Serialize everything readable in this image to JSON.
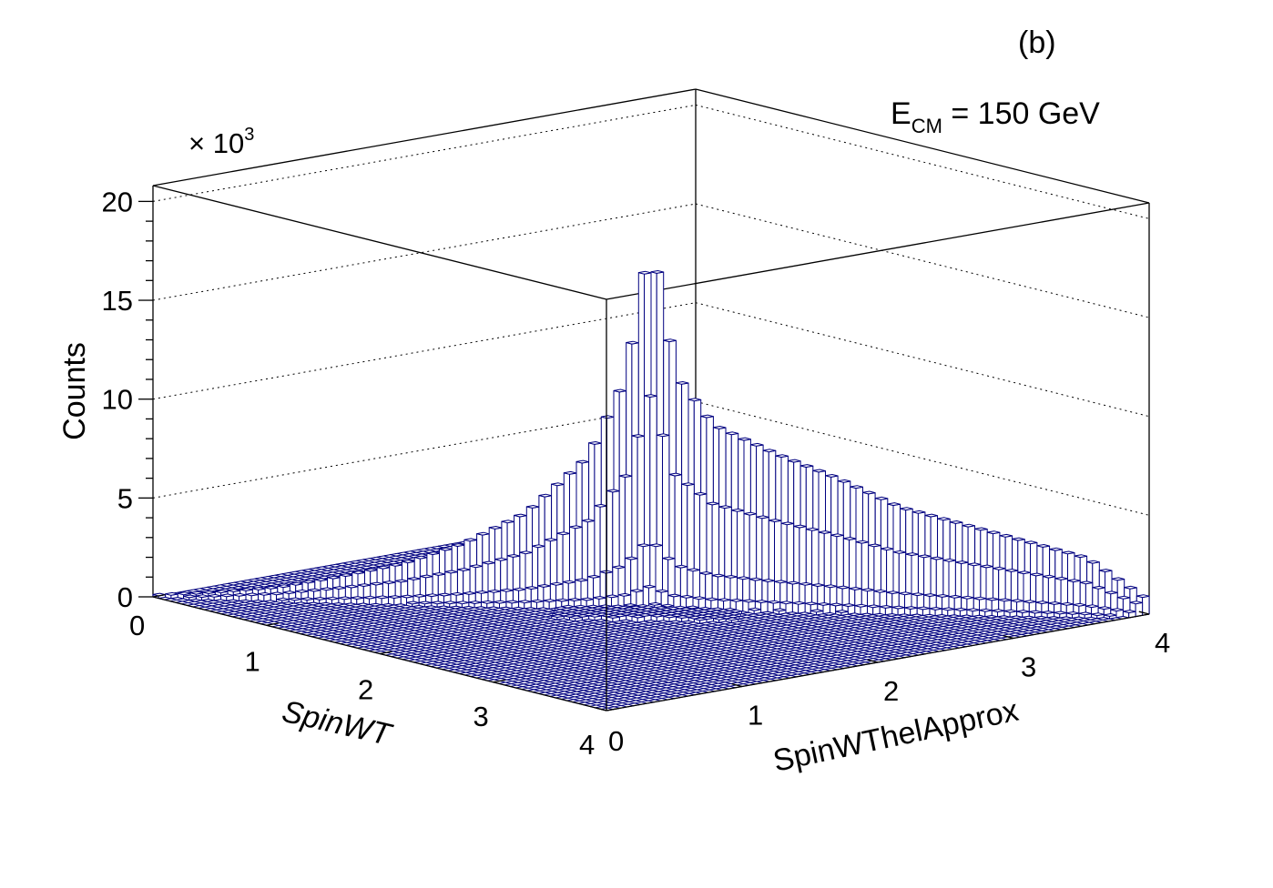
{
  "panel_label": "(b)",
  "annotation": {
    "prefix": "E",
    "subscript": "CM",
    "suffix": " = 150 GeV"
  },
  "colors": {
    "bar_outline": "#000080",
    "bar_fill": "#ffffff",
    "frame": "#000000"
  },
  "chart_data": {
    "type": "lego",
    "xlabel": "SpinWT",
    "ylabel": "SpinWThelApprox",
    "zlabel": "Counts",
    "z_multiplier": "× 10",
    "z_multiplier_exponent": "3",
    "xlim": [
      0,
      4
    ],
    "ylim": [
      0,
      4
    ],
    "zlim": [
      0,
      20.8
    ],
    "x_ticks": [
      "0",
      "1",
      "2",
      "3",
      "4"
    ],
    "y_ticks": [
      "0",
      "1",
      "2",
      "3",
      "4"
    ],
    "z_ticks": [
      "0",
      "5",
      "10",
      "15",
      "20"
    ],
    "grid": true,
    "bins_x": 80,
    "bins_y": 80,
    "peak": {
      "x": 2.0,
      "y": 2.0,
      "value": 18.6
    },
    "diagonal_profile": {
      "x": [
        0.0,
        0.25,
        0.5,
        0.75,
        1.0,
        1.25,
        1.5,
        1.75,
        1.9,
        2.0,
        2.1,
        2.25,
        2.5,
        2.75,
        3.0,
        3.25,
        3.5,
        3.75,
        4.0
      ],
      "value": [
        0.1,
        0.3,
        0.6,
        1.2,
        1.9,
        3.0,
        4.6,
        7.5,
        11.5,
        18.6,
        11.7,
        9.2,
        7.8,
        6.6,
        5.2,
        4.4,
        3.6,
        2.8,
        0.7
      ]
    }
  }
}
